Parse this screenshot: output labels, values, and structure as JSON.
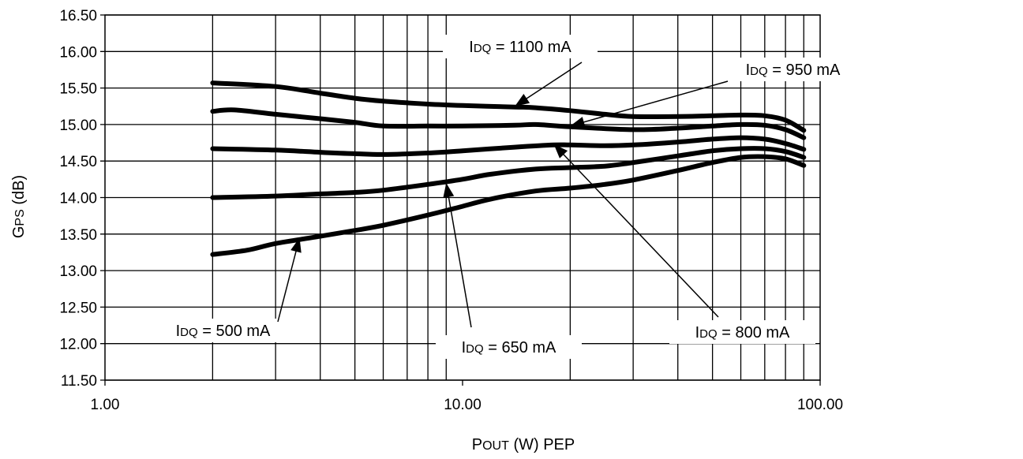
{
  "chart_data": {
    "type": "line",
    "title": "",
    "xlabel": "POUT (W) PEP",
    "ylabel": "GPS (dB)",
    "xscale": "log",
    "xlim": [
      1,
      100
    ],
    "ylim": [
      11.5,
      16.5
    ],
    "x_ticks": [
      1,
      10,
      100
    ],
    "x_tick_labels": [
      "1.00",
      "10.00",
      "100.00"
    ],
    "y_ticks": [
      11.5,
      12.0,
      12.5,
      13.0,
      13.5,
      14.0,
      14.5,
      15.0,
      15.5,
      16.0,
      16.5
    ],
    "y_tick_labels": [
      "11.50",
      "12.00",
      "12.50",
      "13.00",
      "13.50",
      "14.00",
      "14.50",
      "15.00",
      "15.50",
      "16.00",
      "16.50"
    ],
    "grid": true,
    "grid_color": "#000000",
    "line_color": "#000000",
    "series": [
      {
        "name": "IDQ = 1100 mA",
        "points": [
          [
            2,
            15.57
          ],
          [
            3,
            15.52
          ],
          [
            4,
            15.43
          ],
          [
            5,
            15.36
          ],
          [
            6,
            15.32
          ],
          [
            8,
            15.28
          ],
          [
            10,
            15.26
          ],
          [
            14,
            15.24
          ],
          [
            16,
            15.23
          ],
          [
            20,
            15.19
          ],
          [
            25,
            15.14
          ],
          [
            30,
            15.11
          ],
          [
            40,
            15.11
          ],
          [
            50,
            15.12
          ],
          [
            60,
            15.13
          ],
          [
            70,
            15.12
          ],
          [
            80,
            15.06
          ],
          [
            90,
            14.92
          ]
        ]
      },
      {
        "name": "IDQ = 950 mA",
        "points": [
          [
            2,
            15.18
          ],
          [
            2.3,
            15.2
          ],
          [
            3,
            15.14
          ],
          [
            4,
            15.08
          ],
          [
            5,
            15.03
          ],
          [
            6,
            14.98
          ],
          [
            8,
            14.98
          ],
          [
            10,
            14.98
          ],
          [
            14,
            14.99
          ],
          [
            16,
            15.0
          ],
          [
            20,
            14.97
          ],
          [
            30,
            14.93
          ],
          [
            40,
            14.95
          ],
          [
            50,
            14.98
          ],
          [
            60,
            15.0
          ],
          [
            70,
            14.99
          ],
          [
            80,
            14.93
          ],
          [
            90,
            14.82
          ]
        ]
      },
      {
        "name": "IDQ = 800 mA",
        "points": [
          [
            2,
            14.67
          ],
          [
            3,
            14.65
          ],
          [
            4,
            14.62
          ],
          [
            5,
            14.6
          ],
          [
            6,
            14.59
          ],
          [
            8,
            14.61
          ],
          [
            10,
            14.64
          ],
          [
            14,
            14.69
          ],
          [
            18,
            14.72
          ],
          [
            20,
            14.72
          ],
          [
            25,
            14.71
          ],
          [
            30,
            14.72
          ],
          [
            40,
            14.76
          ],
          [
            50,
            14.8
          ],
          [
            60,
            14.82
          ],
          [
            70,
            14.8
          ],
          [
            80,
            14.74
          ],
          [
            90,
            14.66
          ]
        ]
      },
      {
        "name": "IDQ = 650 mA",
        "points": [
          [
            2,
            14.0
          ],
          [
            3,
            14.02
          ],
          [
            4,
            14.05
          ],
          [
            5,
            14.07
          ],
          [
            6,
            14.1
          ],
          [
            8,
            14.18
          ],
          [
            10,
            14.25
          ],
          [
            12,
            14.32
          ],
          [
            16,
            14.39
          ],
          [
            20,
            14.41
          ],
          [
            25,
            14.43
          ],
          [
            30,
            14.48
          ],
          [
            40,
            14.57
          ],
          [
            50,
            14.64
          ],
          [
            60,
            14.67
          ],
          [
            70,
            14.67
          ],
          [
            80,
            14.63
          ],
          [
            90,
            14.55
          ]
        ]
      },
      {
        "name": "IDQ = 500 mA",
        "points": [
          [
            2,
            13.22
          ],
          [
            2.5,
            13.28
          ],
          [
            3,
            13.37
          ],
          [
            4,
            13.47
          ],
          [
            5,
            13.55
          ],
          [
            6,
            13.62
          ],
          [
            8,
            13.76
          ],
          [
            10,
            13.88
          ],
          [
            12,
            13.98
          ],
          [
            16,
            14.09
          ],
          [
            20,
            14.13
          ],
          [
            25,
            14.18
          ],
          [
            30,
            14.24
          ],
          [
            40,
            14.37
          ],
          [
            50,
            14.48
          ],
          [
            60,
            14.55
          ],
          [
            70,
            14.56
          ],
          [
            80,
            14.53
          ],
          [
            90,
            14.44
          ]
        ]
      }
    ],
    "annotations": [
      {
        "label": "IDQ = 1100 mA",
        "prefix": "I",
        "sub": "DQ",
        "rest": " = 1100 mA",
        "target": [
          14,
          15.25
        ]
      },
      {
        "label": "IDQ = 950 mA",
        "prefix": "I",
        "sub": "DQ",
        "rest": " = 950 mA",
        "target": [
          20,
          14.98
        ]
      },
      {
        "label": "IDQ = 800 mA",
        "prefix": "I",
        "sub": "DQ",
        "rest": " = 800 mA",
        "target": [
          18,
          14.73
        ]
      },
      {
        "label": "IDQ = 650 mA",
        "prefix": "I",
        "sub": "DQ",
        "rest": " = 650 mA",
        "target": [
          9,
          14.2
        ]
      },
      {
        "label": "IDQ = 500 mA",
        "prefix": "I",
        "sub": "DQ",
        "rest": " = 500 mA",
        "target": [
          3.5,
          13.45
        ]
      }
    ]
  },
  "axis_labels": {
    "y_main": "G",
    "y_sub": "PS",
    "y_rest": " (dB)",
    "x_main": "P",
    "x_sub": "OUT",
    "x_rest": " (W) PEP"
  }
}
